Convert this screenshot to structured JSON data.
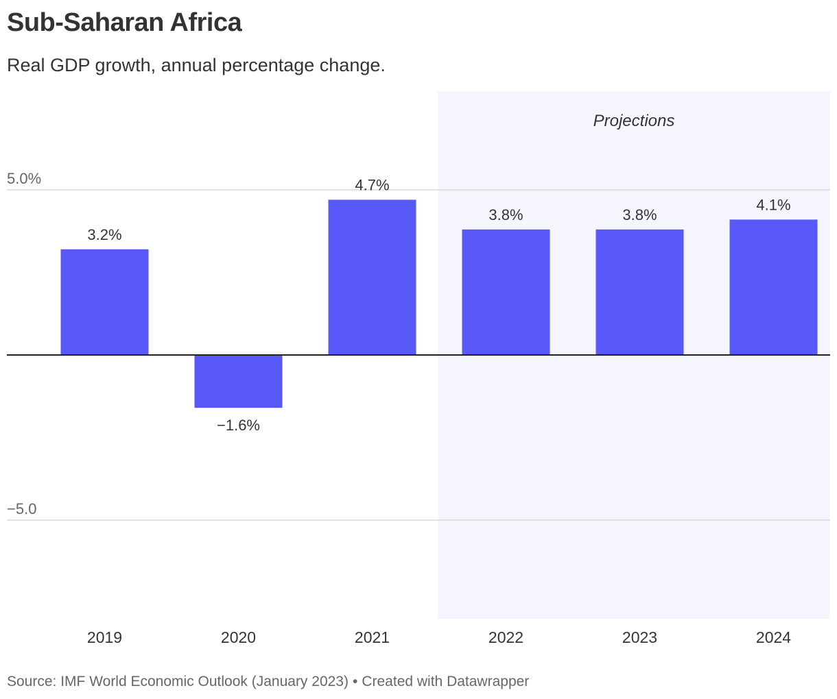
{
  "title": "Sub-Saharan Africa",
  "subtitle": "Real GDP growth, annual percentage change.",
  "footer": {
    "source": "Source: IMF World Economic Outlook (January 2023)",
    "separator": "•",
    "credit": "Created with Datawrapper"
  },
  "colors": {
    "bar": "#5858f8",
    "projection_band": "#f5f5fd",
    "gridline": "#d9d9d9",
    "baseline": "#222222",
    "text": "#333333",
    "muted": "#666666"
  },
  "chart_data": {
    "type": "bar",
    "title": "Sub-Saharan Africa",
    "subtitle": "Real GDP growth, annual percentage change.",
    "xlabel": "",
    "ylabel": "",
    "categories": [
      "2019",
      "2020",
      "2021",
      "2022",
      "2023",
      "2024"
    ],
    "values": [
      3.2,
      -1.6,
      4.7,
      3.8,
      3.8,
      4.1
    ],
    "value_labels": [
      "3.2%",
      "−1.6%",
      "4.7%",
      "3.8%",
      "3.8%",
      "4.1%"
    ],
    "ylim": [
      -8.0,
      8.0
    ],
    "yticks": [
      5.0,
      -5.0
    ],
    "ytick_labels": [
      "5.0%",
      "−5.0"
    ],
    "grid": true,
    "projection": {
      "label": "Projections",
      "start_category": "2022",
      "end_category": "2024"
    }
  }
}
